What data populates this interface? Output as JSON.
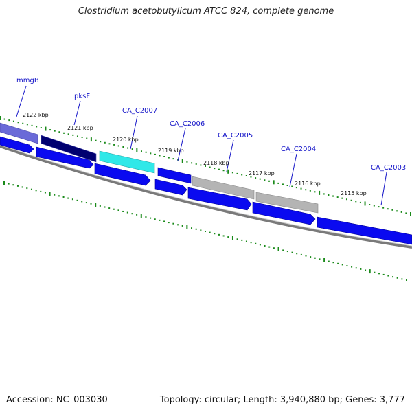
{
  "title": "Clostridium acetobutylicum ATCC 824, complete genome",
  "footer": {
    "accession": "Accession: NC_003030",
    "topology": "Topology: circular; Length: 3,940,880 bp; Genes: 3,777"
  },
  "colors": {
    "backbone": "#7a7a7a",
    "tick": "#1a8a1a",
    "label_blue": "#1414c8",
    "gene_blue": "#0a0af0",
    "gene_navy": "#000070",
    "gene_purple": "#6a6ad8",
    "gene_cyan": "#30e8e8",
    "gene_gray": "#b4b4b4"
  },
  "kbp_ticks": [
    "2122 kbp",
    "2121 kbp",
    "2120 kbp",
    "2119 kbp",
    "2118 kbp",
    "2117 kbp",
    "2116 kbp",
    "2115 kbp"
  ],
  "gene_labels": [
    "mmgB",
    "pksF",
    "CA_C2007",
    "CA_C2006",
    "CA_C2005",
    "CA_C2004",
    "CA_C2003"
  ]
}
